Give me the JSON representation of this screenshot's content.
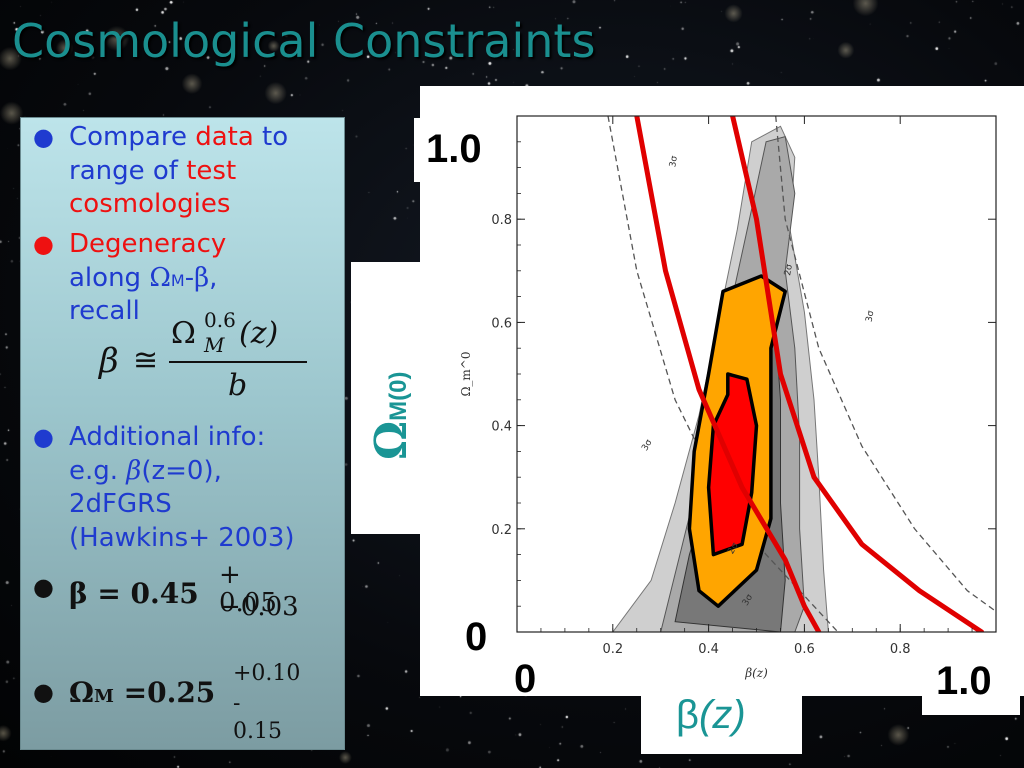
{
  "slide": {
    "title": "Cosmological Constraints"
  },
  "bullets": {
    "b1": {
      "a": "Compare ",
      "b": "data",
      "c": " to",
      "d": "range of ",
      "e": "test",
      "f": "cosmologies"
    },
    "b2": {
      "a": "Degeneracy",
      "b": "along ",
      "omega": "Ω",
      "sub_m": "M",
      "dash": "-",
      "beta": "β",
      "comma": ",",
      "c": "recall"
    },
    "formula": {
      "beta": "β",
      "approx": "≅",
      "omega": "Ω",
      "exp": "0.6",
      "sub": "M",
      "arg": "(z)",
      "denom": "b"
    },
    "b3": {
      "a": "Additional info:",
      "b": "e.g. ",
      "beta": "β",
      "c": "(z=0),",
      "d": "2dFGRS",
      "e": "(Hawkins+ 2003)"
    },
    "b4": {
      "lhs": "β = 0.45",
      "plus": "+ 0.05",
      "minus": "−0.03"
    },
    "b5": {
      "omega": "Ω",
      "sub": "M",
      "eq": " =0.25",
      "plus": "+0.10",
      "minus": "- 0.15"
    }
  },
  "overlay": {
    "y_top": "1.0",
    "y_bottom": "0",
    "x_left": "0",
    "x_right": "1.0",
    "y_axis_omega": "Ω",
    "y_axis_sub": "M(0)",
    "x_axis_beta": "β",
    "x_axis_z": "(z)"
  },
  "chart_data": {
    "type": "contour",
    "xlabel": "β(z)",
    "ylabel": "Ω_m^0",
    "xlim": [
      0.0,
      1.0
    ],
    "ylim": [
      0.0,
      1.0
    ],
    "xticks": [
      "0.2",
      "0.4",
      "0.6",
      "0.8"
    ],
    "yticks": [
      "0.2",
      "0.4",
      "0.6",
      "0.8"
    ],
    "contour_labels": [
      "3σ",
      "2σ",
      "3σ",
      "3σ",
      "2σ",
      "3σ"
    ],
    "colors": {
      "outer": "#cfcfcf",
      "mid": "#a9a9a9",
      "inner": "#787878",
      "orange": "#ffa500",
      "red": "#ff0000",
      "curve": "#e00000"
    },
    "contours": {
      "outer": [
        [
          0.2,
          0.0
        ],
        [
          0.28,
          0.1
        ],
        [
          0.33,
          0.25
        ],
        [
          0.38,
          0.42
        ],
        [
          0.42,
          0.6
        ],
        [
          0.46,
          0.78
        ],
        [
          0.49,
          0.95
        ],
        [
          0.55,
          0.98
        ],
        [
          0.58,
          0.92
        ],
        [
          0.57,
          0.78
        ],
        [
          0.6,
          0.62
        ],
        [
          0.62,
          0.45
        ],
        [
          0.63,
          0.3
        ],
        [
          0.64,
          0.12
        ],
        [
          0.65,
          0.0
        ]
      ],
      "mid": [
        [
          0.3,
          0.0
        ],
        [
          0.34,
          0.15
        ],
        [
          0.38,
          0.3
        ],
        [
          0.41,
          0.48
        ],
        [
          0.45,
          0.65
        ],
        [
          0.49,
          0.82
        ],
        [
          0.52,
          0.95
        ],
        [
          0.56,
          0.96
        ],
        [
          0.58,
          0.85
        ],
        [
          0.56,
          0.7
        ],
        [
          0.58,
          0.55
        ],
        [
          0.59,
          0.38
        ],
        [
          0.59,
          0.2
        ],
        [
          0.6,
          0.05
        ],
        [
          0.58,
          0.0
        ]
      ],
      "inner": [
        [
          0.33,
          0.02
        ],
        [
          0.36,
          0.15
        ],
        [
          0.41,
          0.3
        ],
        [
          0.44,
          0.42
        ],
        [
          0.47,
          0.52
        ],
        [
          0.5,
          0.58
        ],
        [
          0.54,
          0.58
        ],
        [
          0.55,
          0.45
        ],
        [
          0.55,
          0.25
        ],
        [
          0.56,
          0.1
        ],
        [
          0.55,
          0.0
        ]
      ],
      "orange": [
        [
          0.38,
          0.08
        ],
        [
          0.36,
          0.2
        ],
        [
          0.37,
          0.35
        ],
        [
          0.4,
          0.5
        ],
        [
          0.43,
          0.66
        ],
        [
          0.51,
          0.69
        ],
        [
          0.56,
          0.66
        ],
        [
          0.53,
          0.55
        ],
        [
          0.53,
          0.38
        ],
        [
          0.53,
          0.22
        ],
        [
          0.5,
          0.12
        ],
        [
          0.42,
          0.05
        ]
      ],
      "red": [
        [
          0.41,
          0.15
        ],
        [
          0.4,
          0.28
        ],
        [
          0.41,
          0.4
        ],
        [
          0.44,
          0.46
        ],
        [
          0.44,
          0.5
        ],
        [
          0.48,
          0.49
        ],
        [
          0.5,
          0.4
        ],
        [
          0.49,
          0.27
        ],
        [
          0.47,
          0.17
        ]
      ]
    },
    "curves": {
      "red_left": [
        [
          0.25,
          1.0
        ],
        [
          0.31,
          0.7
        ],
        [
          0.38,
          0.47
        ],
        [
          0.47,
          0.28
        ],
        [
          0.56,
          0.14
        ],
        [
          0.6,
          0.05
        ],
        [
          0.63,
          0.0
        ]
      ],
      "red_right": [
        [
          0.45,
          1.0
        ],
        [
          0.5,
          0.8
        ],
        [
          0.55,
          0.5
        ],
        [
          0.62,
          0.3
        ],
        [
          0.72,
          0.17
        ],
        [
          0.84,
          0.08
        ],
        [
          0.97,
          0.0
        ]
      ],
      "dash_left": [
        [
          0.19,
          1.0
        ],
        [
          0.25,
          0.7
        ],
        [
          0.33,
          0.45
        ],
        [
          0.42,
          0.28
        ],
        [
          0.52,
          0.15
        ],
        [
          0.6,
          0.07
        ],
        [
          0.67,
          0.0
        ]
      ],
      "dash_right": [
        [
          0.54,
          1.0
        ],
        [
          0.56,
          0.8
        ],
        [
          0.63,
          0.55
        ],
        [
          0.72,
          0.36
        ],
        [
          0.83,
          0.2
        ],
        [
          0.94,
          0.08
        ],
        [
          1.0,
          0.04
        ]
      ]
    }
  }
}
